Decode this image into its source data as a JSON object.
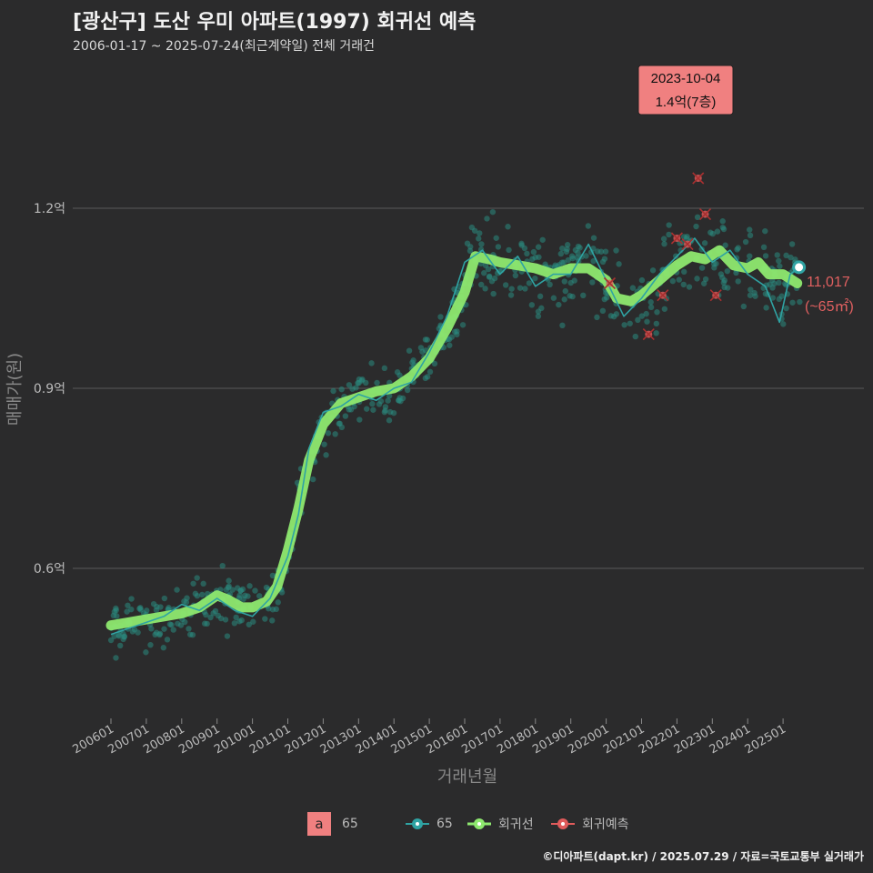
{
  "title": "[광산구] 도산 우미 아파트(1997) 회귀선 예측",
  "subtitle": "2006-01-17 ~ 2025-07-24(최근계약일) 전체 거래건",
  "caption": "©디아파트(dapt.kr) / 2025.07.29 / 자료=국토교통부 실거래가",
  "colors": {
    "background": "#2b2b2c",
    "grid": "#5a5a5a",
    "scatter": "#2a8a80",
    "line65": "#2fa3a3",
    "regression": "#8ee86f",
    "prediction": "#e05b5b",
    "annotation_bg": "#f08080"
  },
  "annotation": {
    "date": "2023-10-04",
    "price": "1.4억(7층)"
  },
  "end_label": {
    "price": "11,017",
    "area": "(~65㎡)"
  },
  "legend": {
    "badge_letter": "a",
    "badge_label": "65",
    "line_label": "65",
    "regression_label": "회귀선",
    "prediction_label": "회귀예측"
  },
  "chart_data": {
    "type": "scatter",
    "title": "[광산구] 도산 우미 아파트(1997) 회귀선 예측",
    "xlabel": "거래년월",
    "ylabel": "매매가(원)",
    "x_range": [
      2006.0,
      2025.6
    ],
    "ylim": [
      0.4,
      1.6
    ],
    "y_ticks": [
      0.6,
      0.9,
      1.2
    ],
    "y_tick_labels": [
      "0.6억",
      "0.9억",
      "1.2억"
    ],
    "x_tick_labels": [
      "200601",
      "200701",
      "200801",
      "200901",
      "201001",
      "201101",
      "201201",
      "201301",
      "201401",
      "201501",
      "201601",
      "201701",
      "201801",
      "201901",
      "202001",
      "202101",
      "202201",
      "202301",
      "202401",
      "202501"
    ],
    "series": [
      {
        "name": "회귀선",
        "points": [
          [
            2006.0,
            0.505
          ],
          [
            2006.5,
            0.51
          ],
          [
            2007.0,
            0.515
          ],
          [
            2007.5,
            0.52
          ],
          [
            2008.0,
            0.525
          ],
          [
            2008.5,
            0.535
          ],
          [
            2009.0,
            0.555
          ],
          [
            2009.3,
            0.548
          ],
          [
            2009.7,
            0.535
          ],
          [
            2010.0,
            0.535
          ],
          [
            2010.4,
            0.545
          ],
          [
            2010.7,
            0.57
          ],
          [
            2011.0,
            0.63
          ],
          [
            2011.3,
            0.7
          ],
          [
            2011.6,
            0.78
          ],
          [
            2012.0,
            0.84
          ],
          [
            2012.5,
            0.875
          ],
          [
            2013.0,
            0.885
          ],
          [
            2013.5,
            0.895
          ],
          [
            2014.0,
            0.9
          ],
          [
            2014.5,
            0.92
          ],
          [
            2015.0,
            0.95
          ],
          [
            2015.5,
            1.0
          ],
          [
            2016.0,
            1.06
          ],
          [
            2016.3,
            1.12
          ],
          [
            2016.7,
            1.115
          ],
          [
            2017.0,
            1.11
          ],
          [
            2017.5,
            1.105
          ],
          [
            2018.0,
            1.1
          ],
          [
            2018.5,
            1.09
          ],
          [
            2019.0,
            1.1
          ],
          [
            2019.5,
            1.1
          ],
          [
            2020.0,
            1.08
          ],
          [
            2020.3,
            1.05
          ],
          [
            2020.7,
            1.045
          ],
          [
            2021.0,
            1.055
          ],
          [
            2021.5,
            1.08
          ],
          [
            2022.0,
            1.105
          ],
          [
            2022.4,
            1.12
          ],
          [
            2022.8,
            1.115
          ],
          [
            2023.2,
            1.13
          ],
          [
            2023.6,
            1.105
          ],
          [
            2024.0,
            1.1
          ],
          [
            2024.3,
            1.11
          ],
          [
            2024.6,
            1.09
          ],
          [
            2025.0,
            1.09
          ],
          [
            2025.4,
            1.075
          ]
        ]
      },
      {
        "name": "65",
        "points": [
          [
            2006.0,
            0.49
          ],
          [
            2006.5,
            0.5
          ],
          [
            2007.0,
            0.51
          ],
          [
            2007.5,
            0.52
          ],
          [
            2008.0,
            0.54
          ],
          [
            2008.5,
            0.53
          ],
          [
            2009.0,
            0.55
          ],
          [
            2009.5,
            0.53
          ],
          [
            2010.0,
            0.52
          ],
          [
            2010.5,
            0.55
          ],
          [
            2011.0,
            0.62
          ],
          [
            2011.3,
            0.69
          ],
          [
            2011.6,
            0.8
          ],
          [
            2012.0,
            0.86
          ],
          [
            2012.5,
            0.87
          ],
          [
            2013.0,
            0.89
          ],
          [
            2013.5,
            0.88
          ],
          [
            2014.0,
            0.9
          ],
          [
            2014.5,
            0.91
          ],
          [
            2015.0,
            0.96
          ],
          [
            2015.5,
            1.02
          ],
          [
            2016.0,
            1.11
          ],
          [
            2016.5,
            1.13
          ],
          [
            2017.0,
            1.09
          ],
          [
            2017.5,
            1.12
          ],
          [
            2018.0,
            1.07
          ],
          [
            2018.5,
            1.09
          ],
          [
            2019.0,
            1.09
          ],
          [
            2019.5,
            1.14
          ],
          [
            2020.0,
            1.08
          ],
          [
            2020.5,
            1.02
          ],
          [
            2021.0,
            1.05
          ],
          [
            2021.5,
            1.09
          ],
          [
            2022.0,
            1.12
          ],
          [
            2022.5,
            1.15
          ],
          [
            2023.0,
            1.11
          ],
          [
            2023.5,
            1.13
          ],
          [
            2024.0,
            1.09
          ],
          [
            2024.5,
            1.07
          ],
          [
            2024.9,
            1.01
          ],
          [
            2025.2,
            1.09
          ],
          [
            2025.45,
            1.101
          ]
        ]
      }
    ],
    "prediction_points": [
      [
        2020.1,
        1.075
      ],
      [
        2021.2,
        0.99
      ],
      [
        2021.6,
        1.055
      ],
      [
        2022.0,
        1.15
      ],
      [
        2022.3,
        1.14
      ],
      [
        2022.6,
        1.25
      ],
      [
        2022.8,
        1.19
      ],
      [
        2023.1,
        1.055
      ]
    ],
    "end_point": [
      2025.45,
      1.1017
    ]
  }
}
